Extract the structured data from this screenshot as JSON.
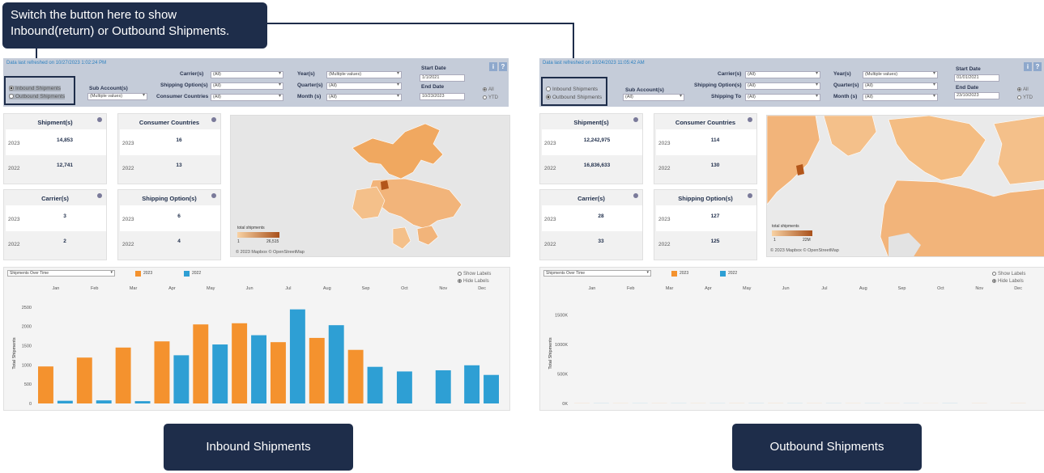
{
  "callout": {
    "line1": "Switch the button here to show",
    "line2": "Inbound(return) or Outbound Shipments."
  },
  "colors": {
    "orange": "#f4922e",
    "blue": "#2e9fd4",
    "navy": "#1e2d4a",
    "filterbar": "#c5ccd9"
  },
  "left": {
    "refresh": "Data last refreshed on 10/27/2023 1:02:24 PM",
    "radio": {
      "option1": "Inbound Shipments",
      "option2": "Outbound Shipments",
      "selected": "option1"
    },
    "filters": {
      "subaccount_label": "Sub Account(s)",
      "subaccount_value": "(Multiple values)",
      "carrier_label": "Carrier(s)",
      "carrier_value": "(All)",
      "shipping_label": "Shipping Option(s)",
      "shipping_value": "(All)",
      "third_label": "Consumer Countries",
      "third_value": "(All)",
      "year_label": "Year(s)",
      "year_value": "(Multiple values)",
      "quarter_label": "Quarter(s)",
      "quarter_value": "(All)",
      "month_label": "Month (s)",
      "month_value": "(All)",
      "start_label": "Start Date",
      "start_value": "1/1/2021",
      "end_label": "End Date",
      "end_value": "10/23/2023",
      "all_label": "All",
      "ytd_label": "YTD"
    },
    "kpis": [
      {
        "title": "Shipment(s)",
        "y1": "2023",
        "v1": "14,853",
        "y2": "2022",
        "v2": "12,741"
      },
      {
        "title": "Consumer Countries",
        "y1": "2023",
        "v1": "16",
        "y2": "2022",
        "v2": "13"
      },
      {
        "title": "Carrier(s)",
        "y1": "2023",
        "v1": "3",
        "y2": "2022",
        "v2": "2"
      },
      {
        "title": "Shipping Option(s)",
        "y1": "2023",
        "v1": "6",
        "y2": "2022",
        "v2": "4"
      }
    ],
    "map": {
      "legend_title": "total shipments",
      "legend_min": "1",
      "legend_max": "26,515",
      "credit": "© 2023 Mapbox © OpenStreetMap"
    }
  },
  "right": {
    "refresh": "Data last refreshed on 10/24/2023 11:05:42 AM",
    "radio": {
      "option1": "Inbound Shipments",
      "option2": "Outbound Shipments",
      "selected": "option2"
    },
    "filters": {
      "subaccount_label": "Sub Account(s)",
      "subaccount_value": "(All)",
      "carrier_label": "Carrier(s)",
      "carrier_value": "(All)",
      "shipping_label": "Shipping Option(s)",
      "shipping_value": "(All)",
      "third_label": "Shipping To",
      "third_value": "(All)",
      "year_label": "Year(s)",
      "year_value": "(Multiple values)",
      "quarter_label": "Quarter(s)",
      "quarter_value": "(All)",
      "month_label": "Month (s)",
      "month_value": "(All)",
      "start_label": "Start Date",
      "start_value": "01/01/2021",
      "end_label": "End Date",
      "end_value": "23/10/2023",
      "all_label": "All",
      "ytd_label": "YTD"
    },
    "kpis": [
      {
        "title": "Shipment(s)",
        "y1": "2023",
        "v1": "12,242,975",
        "y2": "2022",
        "v2": "16,836,633"
      },
      {
        "title": "Consumer Countries",
        "y1": "2023",
        "v1": "114",
        "y2": "2022",
        "v2": "130"
      },
      {
        "title": "Carrier(s)",
        "y1": "2023",
        "v1": "28",
        "y2": "2022",
        "v2": "33"
      },
      {
        "title": "Shipping Option(s)",
        "y1": "2023",
        "v1": "127",
        "y2": "2022",
        "v2": "125"
      }
    ],
    "map": {
      "legend_title": "total shipments",
      "legend_min": "1",
      "legend_max": "22M",
      "credit": "© 2023 Mapbox © OpenStreetMap"
    }
  },
  "chart_controls": {
    "selector": "Shipments Over Time",
    "show_labels": "Show Labels",
    "hide_labels": "Hide Labels"
  },
  "chart_data": [
    {
      "type": "bar",
      "categories": [
        "Jan",
        "Feb",
        "Mar",
        "Apr",
        "May",
        "Jun",
        "Jul",
        "Aug",
        "Sep",
        "Oct",
        "Nov",
        "Dec"
      ],
      "series": [
        {
          "name": "2023",
          "values": [
            960,
            1190,
            1450,
            1610,
            2050,
            2080,
            1590,
            1700,
            1390,
            null,
            null,
            null
          ]
        },
        {
          "name": "2022",
          "values": [
            70,
            80,
            60,
            1250,
            1530,
            1770,
            2440,
            2030,
            950,
            830,
            860,
            990
          ]
        },
        {
          "values": [
            null,
            null,
            null,
            null,
            null,
            null,
            null,
            null,
            null,
            null,
            null,
            740
          ]
        }
      ],
      "ylabel": "Total Shipments",
      "yticks": [
        "0",
        "500",
        "1000",
        "1500",
        "2000",
        "2500"
      ],
      "ylim": [
        0,
        2600
      ]
    },
    {
      "type": "bar",
      "categories": [
        "Jan",
        "Feb",
        "Mar",
        "Apr",
        "May",
        "Jun",
        "Jul",
        "Aug",
        "Sep",
        "Oct",
        "Nov",
        "Dec"
      ],
      "series": [
        {
          "name": "2023",
          "values": [
            1320,
            1240,
            1270,
            1140,
            1410,
            1390,
            1250,
            1200,
            1110,
            850,
            1260,
            1390
          ]
        },
        {
          "name": "2022",
          "values": [
            1560,
            1340,
            1390,
            1320,
            1520,
            1470,
            1430,
            1320,
            1220,
            1550,
            null,
            null
          ]
        }
      ],
      "ylabel": "Total Shipments",
      "yticks": [
        "0K",
        "500K",
        "1000K",
        "1500K"
      ],
      "ylim": [
        0,
        1700000
      ]
    }
  ],
  "captions": {
    "left": "Inbound Shipments",
    "right": "Outbound Shipments"
  }
}
